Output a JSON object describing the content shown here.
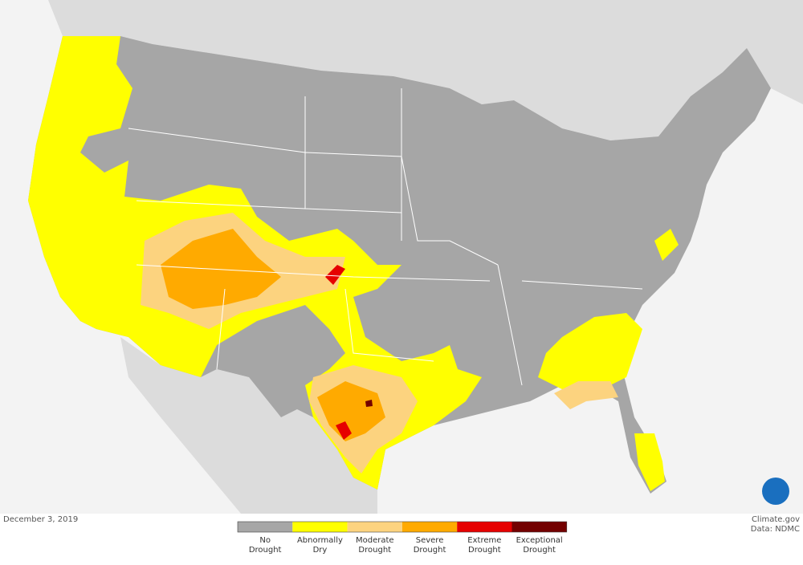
{
  "map": {
    "date": "December 3, 2019",
    "credit": "Climate.gov",
    "source": "Data: NDMC",
    "legend": [
      {
        "label": [
          "No",
          "Drought"
        ],
        "color": "#a6a6a6"
      },
      {
        "label": [
          "Abnormally",
          "Dry"
        ],
        "color": "#ffff00"
      },
      {
        "label": [
          "Moderate",
          "Drought"
        ],
        "color": "#fcd37f"
      },
      {
        "label": [
          "Severe",
          "Drought"
        ],
        "color": "#ffaa00"
      },
      {
        "label": [
          "Extreme",
          "Drought"
        ],
        "color": "#e60000"
      },
      {
        "label": [
          "Exceptional",
          "Drought"
        ],
        "color": "#730000"
      }
    ]
  }
}
